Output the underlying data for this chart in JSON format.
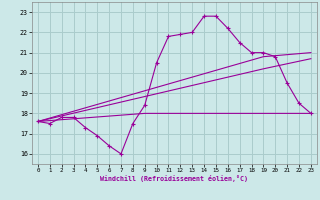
{
  "xlabel": "Windchill (Refroidissement éolien,°C)",
  "background_color": "#cce8e8",
  "grid_color": "#aacccc",
  "line_color": "#990099",
  "xlim": [
    -0.5,
    23.5
  ],
  "ylim": [
    15.5,
    23.5
  ],
  "yticks": [
    16,
    17,
    18,
    19,
    20,
    21,
    22,
    23
  ],
  "xticks": [
    0,
    1,
    2,
    3,
    4,
    5,
    6,
    7,
    8,
    9,
    10,
    11,
    12,
    13,
    14,
    15,
    16,
    17,
    18,
    19,
    20,
    21,
    22,
    23
  ],
  "series1_x": [
    0,
    1,
    2,
    3,
    4,
    5,
    6,
    7,
    8,
    9,
    10,
    11,
    12,
    13,
    14,
    15,
    16,
    17,
    18,
    19,
    20,
    21,
    22,
    23
  ],
  "series1_y": [
    17.6,
    17.5,
    17.8,
    17.8,
    17.3,
    16.9,
    16.4,
    16.0,
    17.5,
    18.4,
    20.5,
    21.8,
    21.9,
    22.0,
    22.8,
    22.8,
    22.2,
    21.5,
    21.0,
    21.0,
    20.8,
    19.5,
    18.5,
    18.0
  ],
  "series2_x": [
    0,
    9,
    23
  ],
  "series2_y": [
    17.6,
    18.0,
    18.0
  ],
  "series3_x": [
    0,
    19,
    23
  ],
  "series3_y": [
    17.6,
    20.8,
    21.0
  ],
  "series4_x": [
    0,
    19,
    23
  ],
  "series4_y": [
    17.6,
    20.2,
    20.7
  ]
}
